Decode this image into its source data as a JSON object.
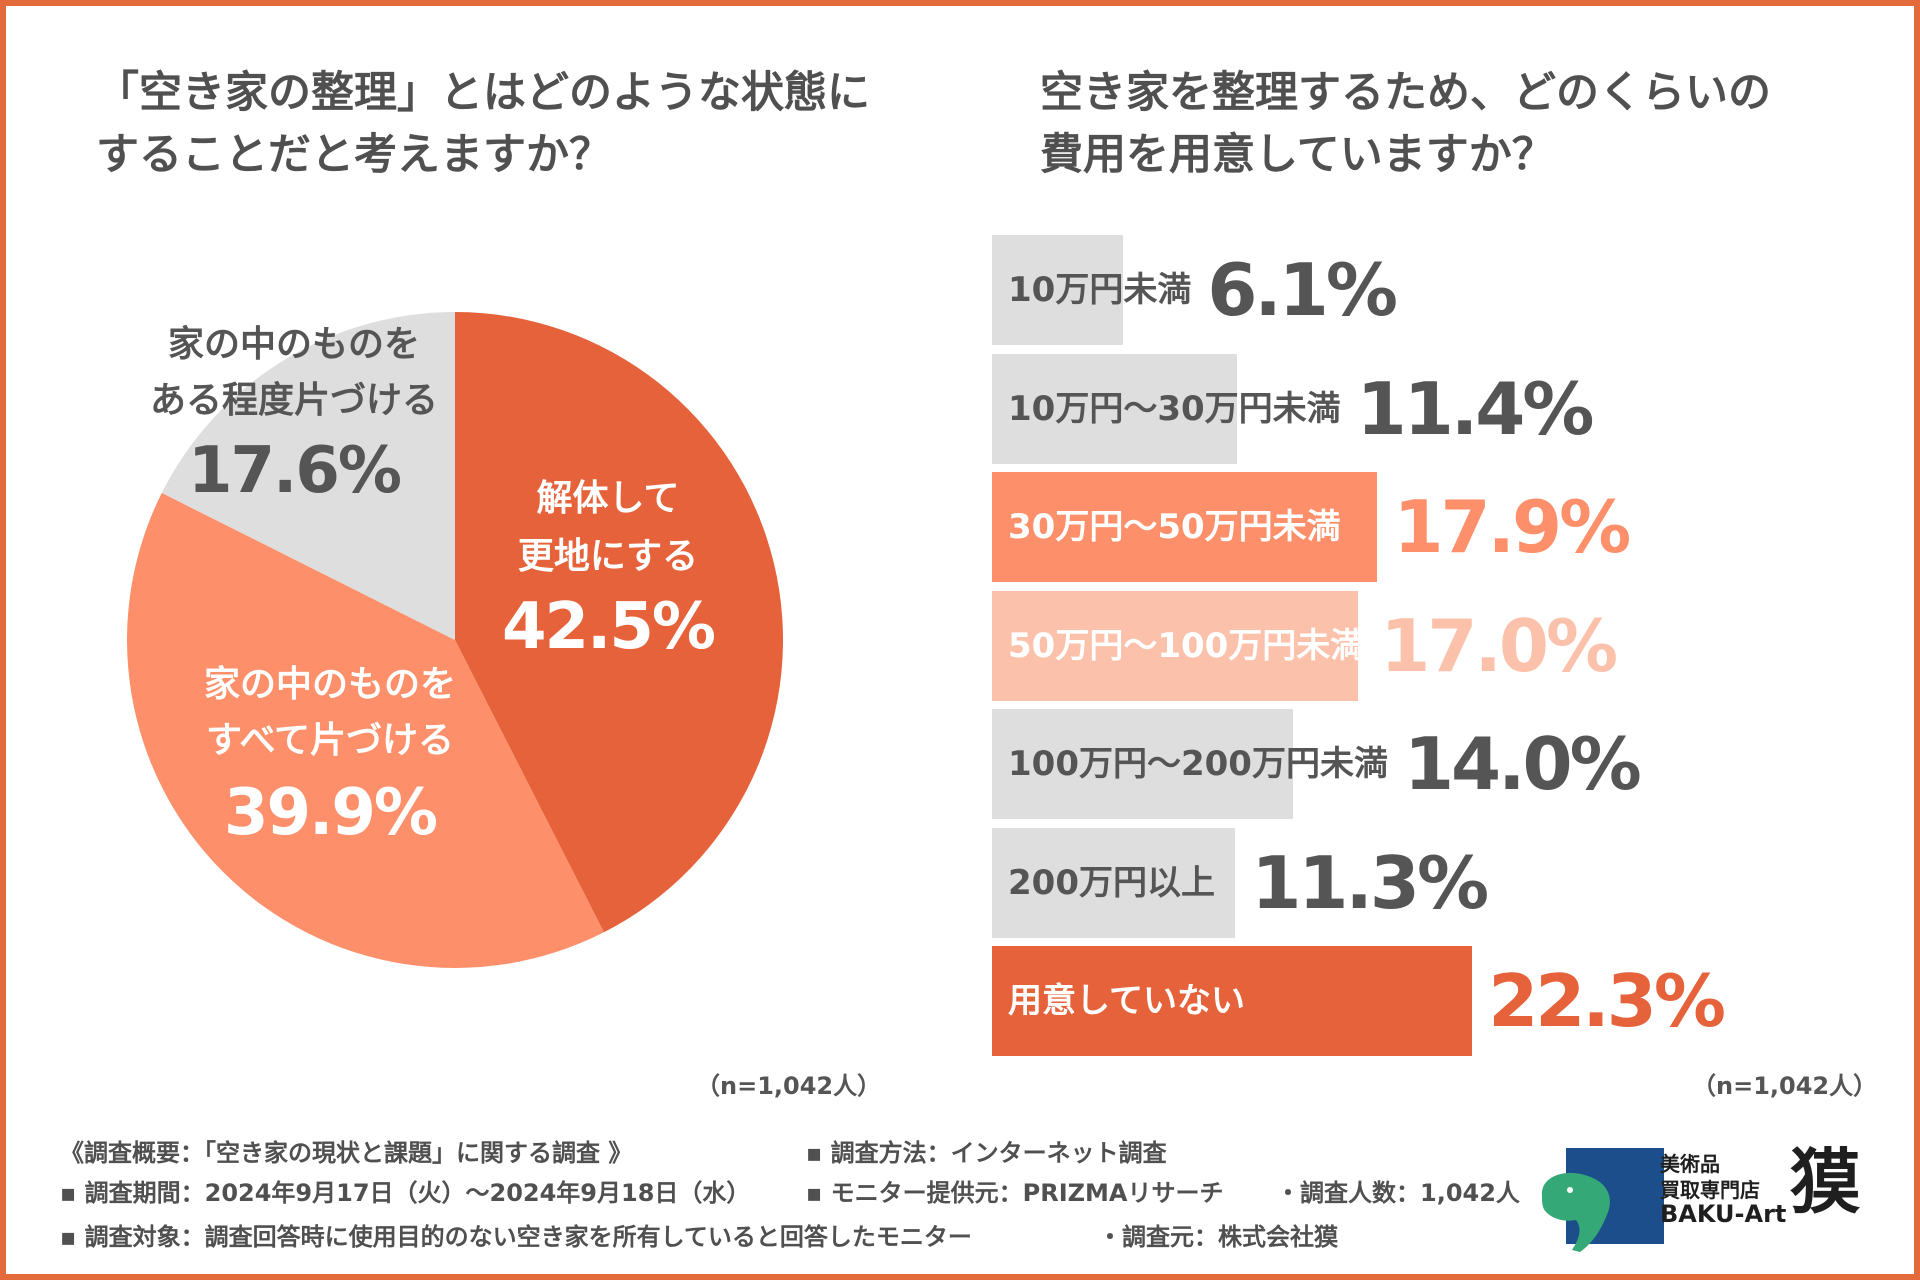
{
  "colors": {
    "frame": "#e36a3a",
    "accent_dark": "#e5623a",
    "accent_mid": "#fd906a",
    "accent_light": "#fcc1ab",
    "gray": "#dedede",
    "text": "#555555",
    "logo_blue": "#1d4e8c",
    "logo_green": "#35a877"
  },
  "chart_data": [
    {
      "type": "pie",
      "title": "「空き家の整理」とはどのような状態に\nすることだと考えますか？",
      "n_note": "（n=1,042人）",
      "slices": [
        {
          "label_lines": [
            "解体して",
            "更地にする"
          ],
          "value": 42.5,
          "display": "42.5%",
          "color": "#e5623a",
          "text_color": "#ffffff"
        },
        {
          "label_lines": [
            "家の中のものを",
            "すべて片づける"
          ],
          "value": 39.9,
          "display": "39.9%",
          "color": "#fd906a",
          "text_color": "#ffffff"
        },
        {
          "label_lines": [
            "家の中のものを",
            "ある程度片づける"
          ],
          "value": 17.6,
          "display": "17.6%",
          "color": "#dedede",
          "text_color": "#555555"
        }
      ]
    },
    {
      "type": "bar",
      "orientation": "horizontal",
      "title": "空き家を整理するため、どのくらいの\n費用を用意していますか？",
      "n_note": "（n=1,042人）",
      "xlim": [
        0,
        30
      ],
      "bars": [
        {
          "label": "10万円未満",
          "value": 6.1,
          "display": "6.1%",
          "color": "#dedede",
          "label_color": "#555555",
          "value_color": "#555555"
        },
        {
          "label": "10万円〜30万円未満",
          "value": 11.4,
          "display": "11.4%",
          "color": "#dedede",
          "label_color": "#555555",
          "value_color": "#555555"
        },
        {
          "label": "30万円〜50万円未満",
          "value": 17.9,
          "display": "17.9%",
          "color": "#fd906a",
          "label_color": "#ffffff",
          "value_color": "#fd906a"
        },
        {
          "label": "50万円〜100万円未満",
          "value": 17.0,
          "display": "17.0%",
          "color": "#fcc1ab",
          "label_color": "#ffffff",
          "value_color": "#fcc1ab"
        },
        {
          "label": "100万円〜200万円未満",
          "value": 14.0,
          "display": "14.0%",
          "color": "#dedede",
          "label_color": "#555555",
          "value_color": "#555555"
        },
        {
          "label": "200万円以上",
          "value": 11.3,
          "display": "11.3%",
          "color": "#dedede",
          "label_color": "#555555",
          "value_color": "#555555"
        },
        {
          "label": "用意していない",
          "value": 22.3,
          "display": "22.3%",
          "color": "#e5623a",
          "label_color": "#ffffff",
          "value_color": "#e5623a"
        }
      ]
    }
  ],
  "footer": {
    "overview": "《調査概要：「空き家の現状と課題」に関する調査 》",
    "period": "▪ 調査期間：2024年9月17日（火）〜2024年9月18日（水）",
    "target": "▪ 調査対象：調査回答時に使用目的のない空き家を所有していると回答したモニター",
    "method": "▪ 調査方法：インターネット調査",
    "monitor": "▪ モニター提供元：PRIZMAリサーチ",
    "count": "・調査人数：1,042人",
    "organizer": "・調査元：株式会社獏"
  },
  "logo": {
    "line1": "美術品",
    "line2": "買取専門店",
    "line3": "BAKU-Art",
    "kanji": "獏"
  }
}
